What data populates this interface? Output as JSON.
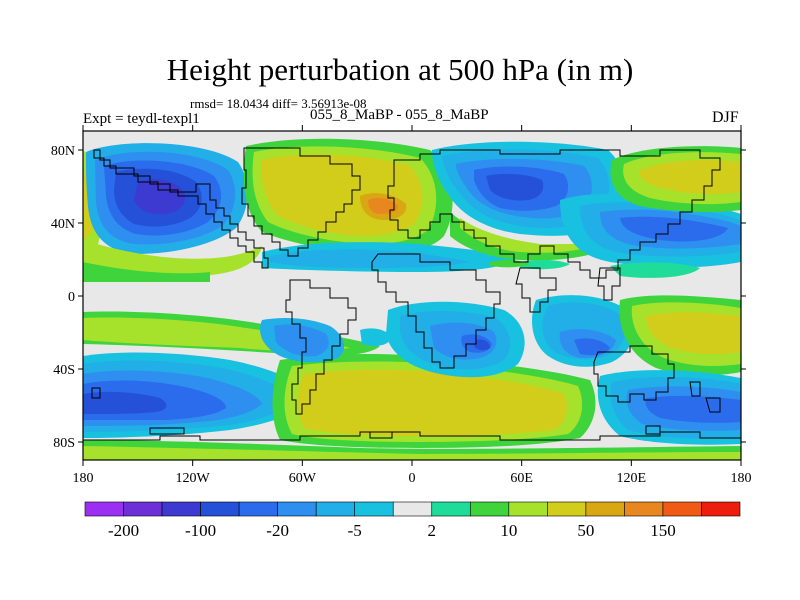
{
  "title": "Height perturbation at 500 hPa (in m)",
  "stats_line": "rmsd= 18.0434 diff= 3.56913e-08",
  "experiment_label": "Expt = teydl-texpl1",
  "experiment_names": "055_8_MaBP - 055_8_MaBP",
  "season": "DJF",
  "lat_labels": [
    "80N",
    "40N",
    "0",
    "40S",
    "80S"
  ],
  "lon_labels": [
    "180",
    "120W",
    "60W",
    "0",
    "60E",
    "120E",
    "180"
  ],
  "colorbar": {
    "colors": [
      "#9b30f2",
      "#6d2fd6",
      "#3c3ad0",
      "#2550d8",
      "#2b6cec",
      "#2e8ff0",
      "#22aee6",
      "#19c1e0",
      "#e8e8e8",
      "#1fdc9a",
      "#3fd43c",
      "#a6e22c",
      "#d2cc1a",
      "#d9a614",
      "#e88720",
      "#f05a14",
      "#ee1e0c"
    ],
    "labels": [
      "-200",
      "-100",
      "-20",
      "-5",
      "2",
      "10",
      "50",
      "150"
    ]
  }
}
